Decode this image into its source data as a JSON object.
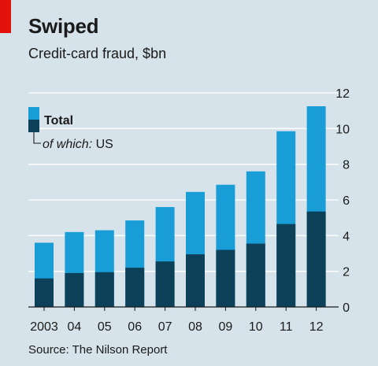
{
  "header": {
    "title": "Swiped",
    "subtitle": "Credit-card fraud, $bn"
  },
  "footer": {
    "source": "Source: The Nilson Report"
  },
  "legend": {
    "total_label": "Total",
    "us_prefix": "of which:",
    "us_label": "US"
  },
  "colors": {
    "background": "#d6e3ea",
    "total": "#189dd6",
    "us": "#0d4059",
    "grid": "#ffffff",
    "accent": "#e3120b"
  },
  "chart_data": {
    "type": "bar",
    "stacked": true,
    "title": "Swiped",
    "subtitle": "Credit-card fraud, $bn",
    "categories": [
      "2003",
      "04",
      "05",
      "06",
      "07",
      "08",
      "09",
      "10",
      "11",
      "12"
    ],
    "series": [
      {
        "name": "Total",
        "values": [
          3.6,
          4.2,
          4.3,
          4.85,
          5.6,
          6.45,
          6.85,
          7.6,
          9.85,
          11.25
        ]
      },
      {
        "name": "of which: US",
        "values": [
          1.6,
          1.9,
          1.95,
          2.2,
          2.55,
          2.95,
          3.2,
          3.55,
          4.65,
          5.35
        ]
      }
    ],
    "ylim": [
      0,
      12
    ],
    "yticks": [
      0,
      2,
      4,
      6,
      8,
      10,
      12
    ],
    "y_axis_side": "right",
    "grid": true,
    "legend_position": "top-left",
    "xlabel": "",
    "ylabel": ""
  }
}
